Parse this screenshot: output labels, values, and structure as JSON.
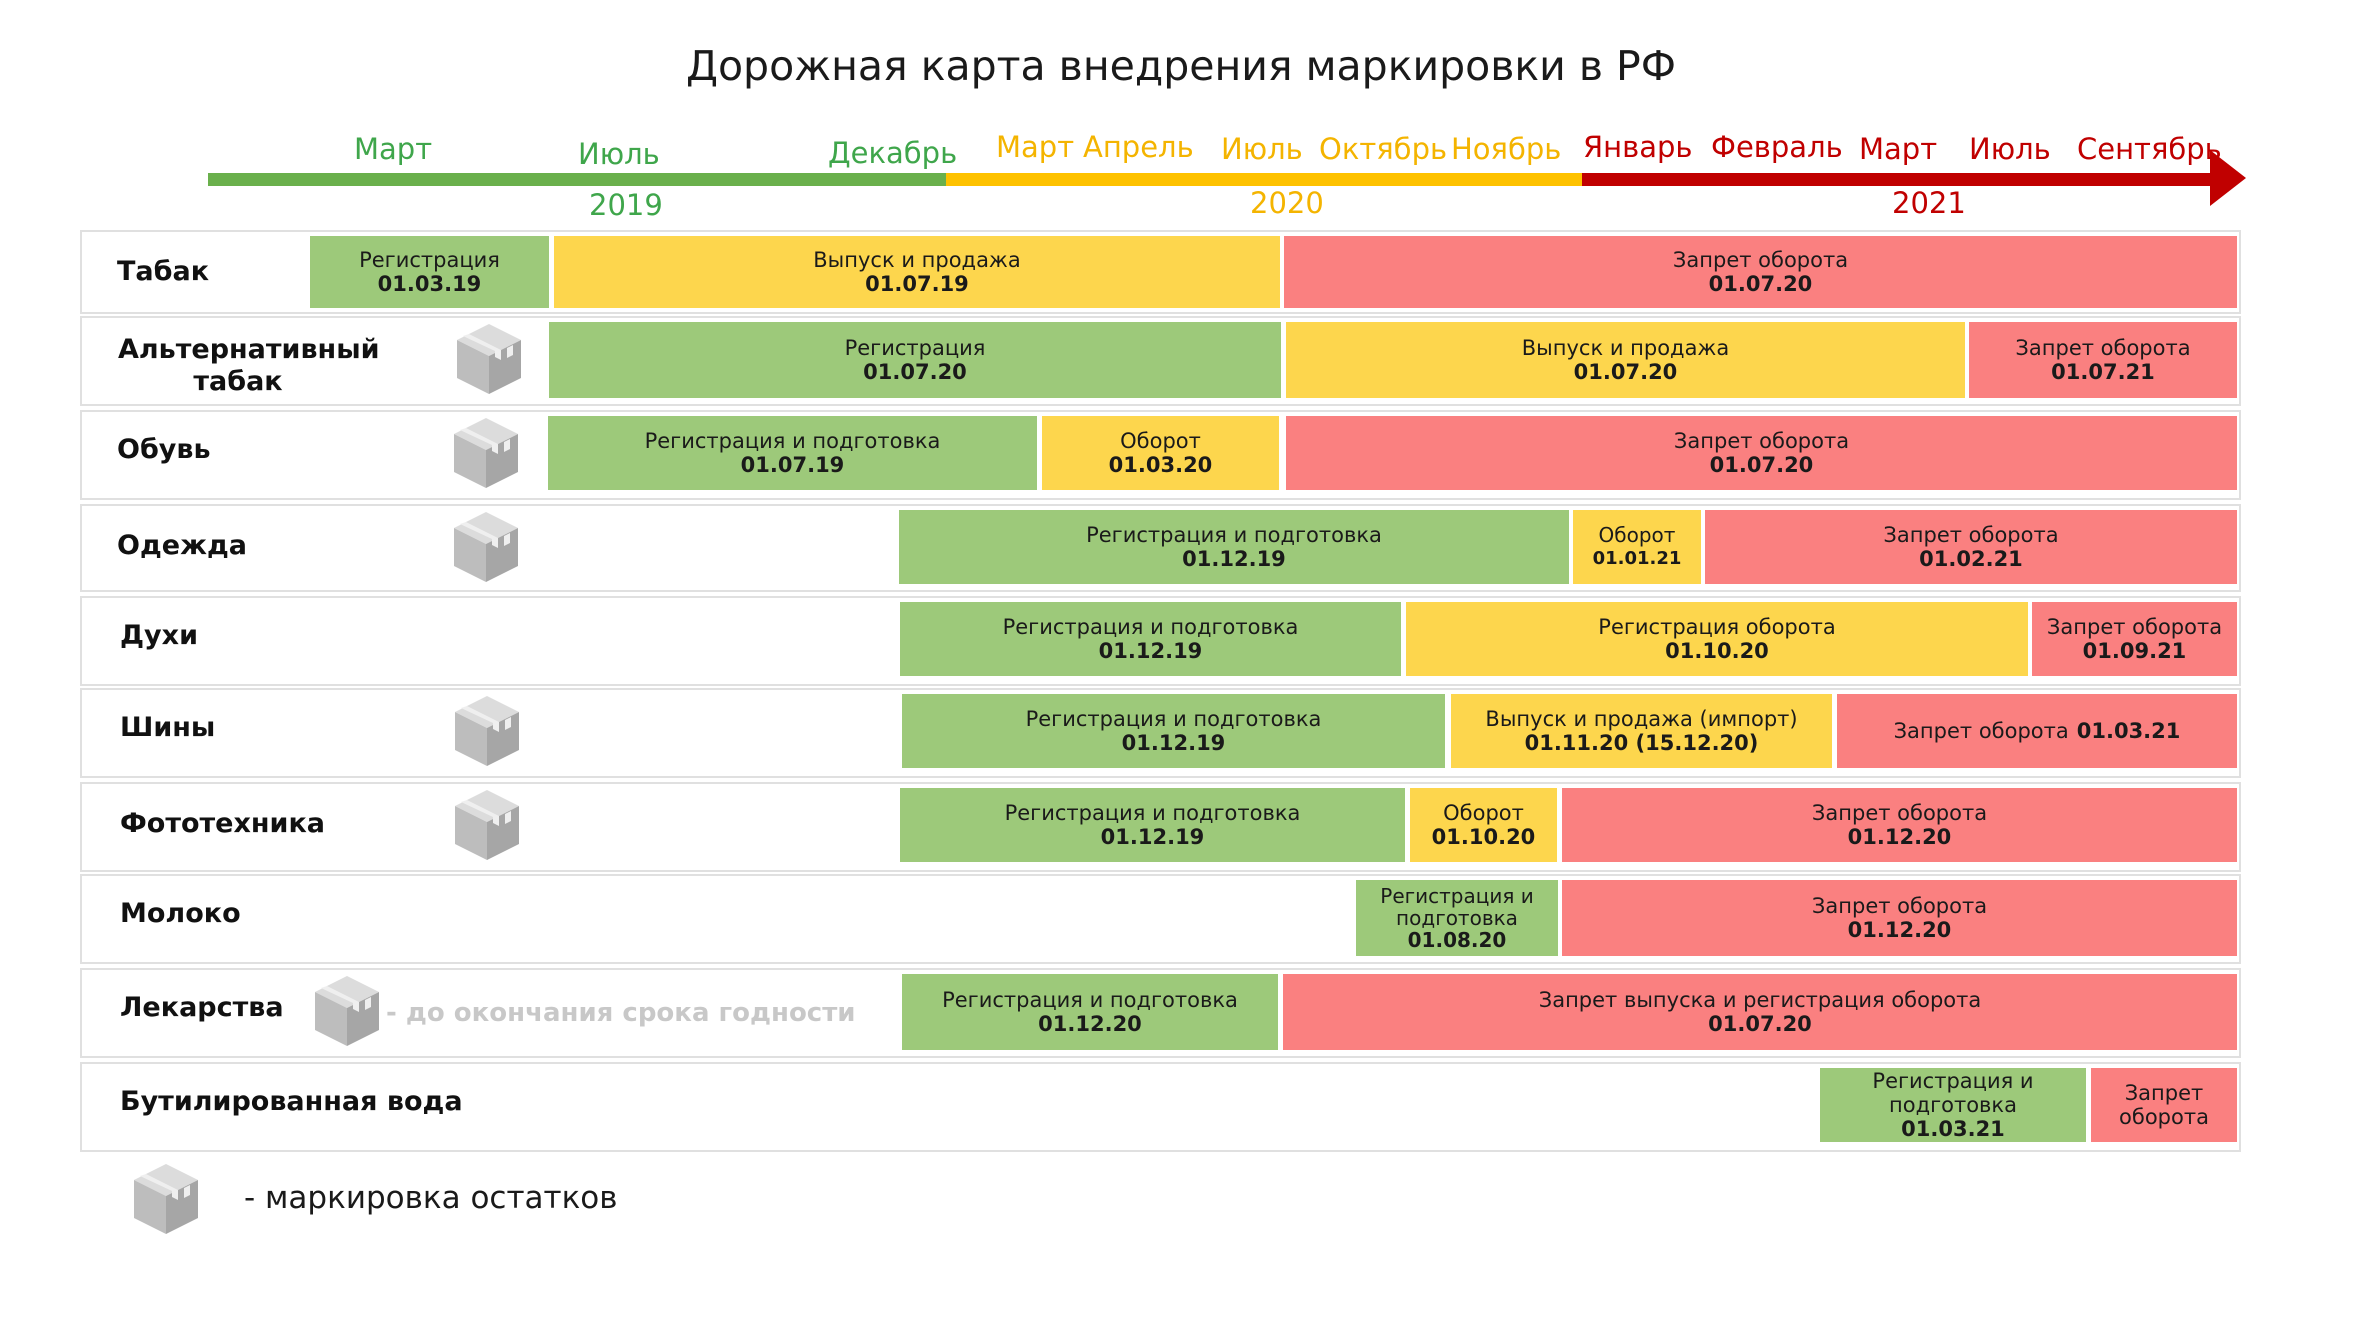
{
  "title": "Дорожная карта внедрения маркировки в РФ",
  "colors": {
    "green": "#6ab04c",
    "yellow": "#fec200",
    "red": "#c00000",
    "seg_green": "#9dc97a",
    "seg_yellow": "#fdd64d",
    "seg_red": "#fa8080"
  },
  "timeline": {
    "months": [
      "Март",
      "Июль",
      "Декабрь",
      "Март",
      "Апрель",
      "Июль",
      "Октябрь",
      "Ноябрь",
      "Январь",
      "Февраль",
      "Март",
      "Июль",
      "Сентябрь"
    ],
    "years": [
      "2019",
      "2020",
      "2021"
    ]
  },
  "rows": [
    {
      "label": "Табак",
      "remnants": false,
      "segments": [
        {
          "text": "Регистрация",
          "date": "01.03.19",
          "color": "green"
        },
        {
          "text": "Выпуск и продажа",
          "date": "01.07.19",
          "color": "yellow"
        },
        {
          "text": "Запрет оборота",
          "date": "01.07.20",
          "color": "red"
        }
      ]
    },
    {
      "label": "Альтернативный табак",
      "remnants": true,
      "segments": [
        {
          "text": "Регистрация",
          "date": "01.07.20",
          "color": "green"
        },
        {
          "text": "Выпуск и продажа",
          "date": "01.07.20",
          "color": "yellow"
        },
        {
          "text": "Запрет оборота",
          "date": "01.07.21",
          "color": "red"
        }
      ]
    },
    {
      "label": "Обувь",
      "remnants": true,
      "segments": [
        {
          "text": "Регистрация и подготовка",
          "date": "01.07.19",
          "color": "green"
        },
        {
          "text": "Оборот",
          "date": "01.03.20",
          "color": "yellow"
        },
        {
          "text": "Запрет оборота",
          "date": "01.07.20",
          "color": "red"
        }
      ]
    },
    {
      "label": "Одежда",
      "remnants": true,
      "segments": [
        {
          "text": "Регистрация и подготовка",
          "date": "01.12.19",
          "color": "green"
        },
        {
          "text": "Оборот",
          "date": "01.01.21",
          "color": "yellow"
        },
        {
          "text": "Запрет оборота",
          "date": "01.02.21",
          "color": "red"
        }
      ]
    },
    {
      "label": "Духи",
      "remnants": false,
      "segments": [
        {
          "text": "Регистрация и подготовка",
          "date": "01.12.19",
          "color": "green"
        },
        {
          "text": "Регистрация оборота",
          "date": "01.10.20",
          "color": "yellow"
        },
        {
          "text": "Запрет оборота",
          "date": "01.09.21",
          "color": "red"
        }
      ]
    },
    {
      "label": "Шины",
      "remnants": true,
      "segments": [
        {
          "text": "Регистрация и подготовка",
          "date": "01.12.19",
          "color": "green"
        },
        {
          "text": "Выпуск и продажа (импорт)",
          "date": "01.11.20 (15.12.20)",
          "color": "yellow"
        },
        {
          "text": "Запрет оборота",
          "date": "01.03.21",
          "color": "red"
        }
      ]
    },
    {
      "label": "Фототехника",
      "remnants": true,
      "segments": [
        {
          "text": "Регистрация и подготовка",
          "date": "01.12.19",
          "color": "green"
        },
        {
          "text": "Оборот",
          "date": "01.10.20",
          "color": "yellow"
        },
        {
          "text": "Запрет оборота",
          "date": "01.12.20",
          "color": "red"
        }
      ]
    },
    {
      "label": "Молоко",
      "remnants": false,
      "segments": [
        {
          "text": "Регистрация и подготовка",
          "date": "01.08.20",
          "color": "green"
        },
        {
          "text": "Запрет оборота",
          "date": "01.12.20",
          "color": "red"
        }
      ]
    },
    {
      "label": "Лекарства",
      "remnants": true,
      "note": "- до окончания срока годности",
      "segments": [
        {
          "text": "Регистрация и подготовка",
          "date": "01.12.20",
          "color": "green"
        },
        {
          "text": "Запрет выпуска и регистрация оборота",
          "date": "01.07.20",
          "color": "red"
        }
      ]
    },
    {
      "label": "Бутилированная вода",
      "remnants": false,
      "segments": [
        {
          "text": "Регистрация и подготовка",
          "date": "01.03.21",
          "color": "green"
        },
        {
          "text": "Запрет оборота",
          "date": "",
          "color": "red"
        }
      ]
    }
  ],
  "legend": {
    "text": "- маркировка остатков",
    "icon": "box-icon"
  }
}
